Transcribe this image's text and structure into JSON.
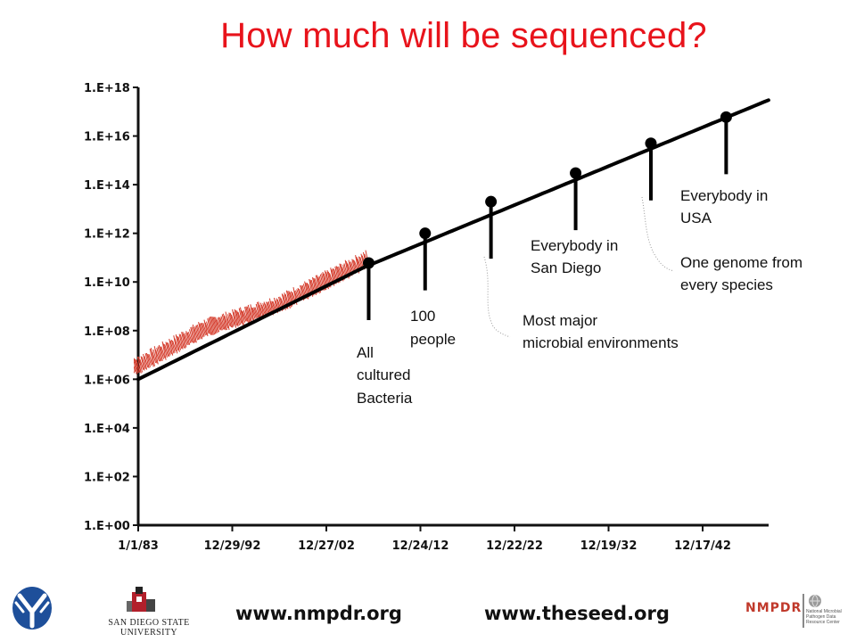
{
  "title": "How much will be sequenced?",
  "colors": {
    "title": "#e8131b",
    "curve": "#000000",
    "observed": "#d43a2a",
    "markers": "#000000"
  },
  "chart_data": {
    "type": "line",
    "title": "How much will be sequenced?",
    "xlabel": "",
    "ylabel": "",
    "y_scale": "log",
    "x_ticks": [
      "1/1/83",
      "12/29/92",
      "12/27/02",
      "12/24/12",
      "12/22/22",
      "12/19/32",
      "12/17/42"
    ],
    "x_range": [
      "1/1/83",
      "about 2050"
    ],
    "y_ticks": [
      "1.E+00",
      "1.E+02",
      "1.E+04",
      "1.E+06",
      "1.E+08",
      "1.E+10",
      "1.E+12",
      "1.E+14",
      "1.E+16",
      "1.E+18"
    ],
    "y_range": [
      1,
      1e+18
    ],
    "grid": false,
    "series": [
      {
        "role": "projected trend",
        "color": "#000000",
        "x": [
          "1/1/83",
          "2007",
          "2050"
        ],
        "y": [
          1000000.0,
          40000000000.0,
          3e+17
        ]
      },
      {
        "role": "observed data",
        "color": "#d43a2a",
        "x": [
          "1983",
          "1990",
          "1998",
          "2007"
        ],
        "y": [
          3000000.0,
          100000000.0,
          1000000000.0,
          60000000000.0
        ]
      }
    ],
    "milestones": [
      {
        "year": 2007.5,
        "value": 60000000000.0,
        "label": "All cultured Bacteria"
      },
      {
        "year": 2013.5,
        "value": 1000000000000.0,
        "label": "100 people"
      },
      {
        "year": 2020.5,
        "value": 20000000000000.0,
        "label": "Most major microbial environments"
      },
      {
        "year": 2029.5,
        "value": 300000000000000.0,
        "label": "Everybody in San Diego"
      },
      {
        "year": 2037.5,
        "value": 5000000000000000.0,
        "label": "One genome from every species"
      },
      {
        "year": 2045.5,
        "value": 6e+16,
        "label": "Everybody in USA"
      }
    ]
  },
  "annotations": {
    "bacteria": [
      "All",
      "cultured",
      "Bacteria"
    ],
    "people": [
      "100",
      "people"
    ],
    "microbial": [
      "Most major",
      "microbial environments"
    ],
    "san_diego": [
      "Everybody in",
      "San Diego"
    ],
    "usa": [
      "Everybody in",
      "USA"
    ],
    "species": [
      "One genome from",
      "every species"
    ]
  },
  "footer": {
    "url1": "www.nmpdr.org",
    "url2": "www.theseed.org",
    "sdsu_line1": "SAN DIEGO STATE",
    "sdsu_line2": "UNIVERSITY",
    "nmpdr_logo": "NMPDR",
    "nmpdr_sub": [
      "National Microbial",
      "Pathogen Data",
      "Resource Center"
    ]
  }
}
